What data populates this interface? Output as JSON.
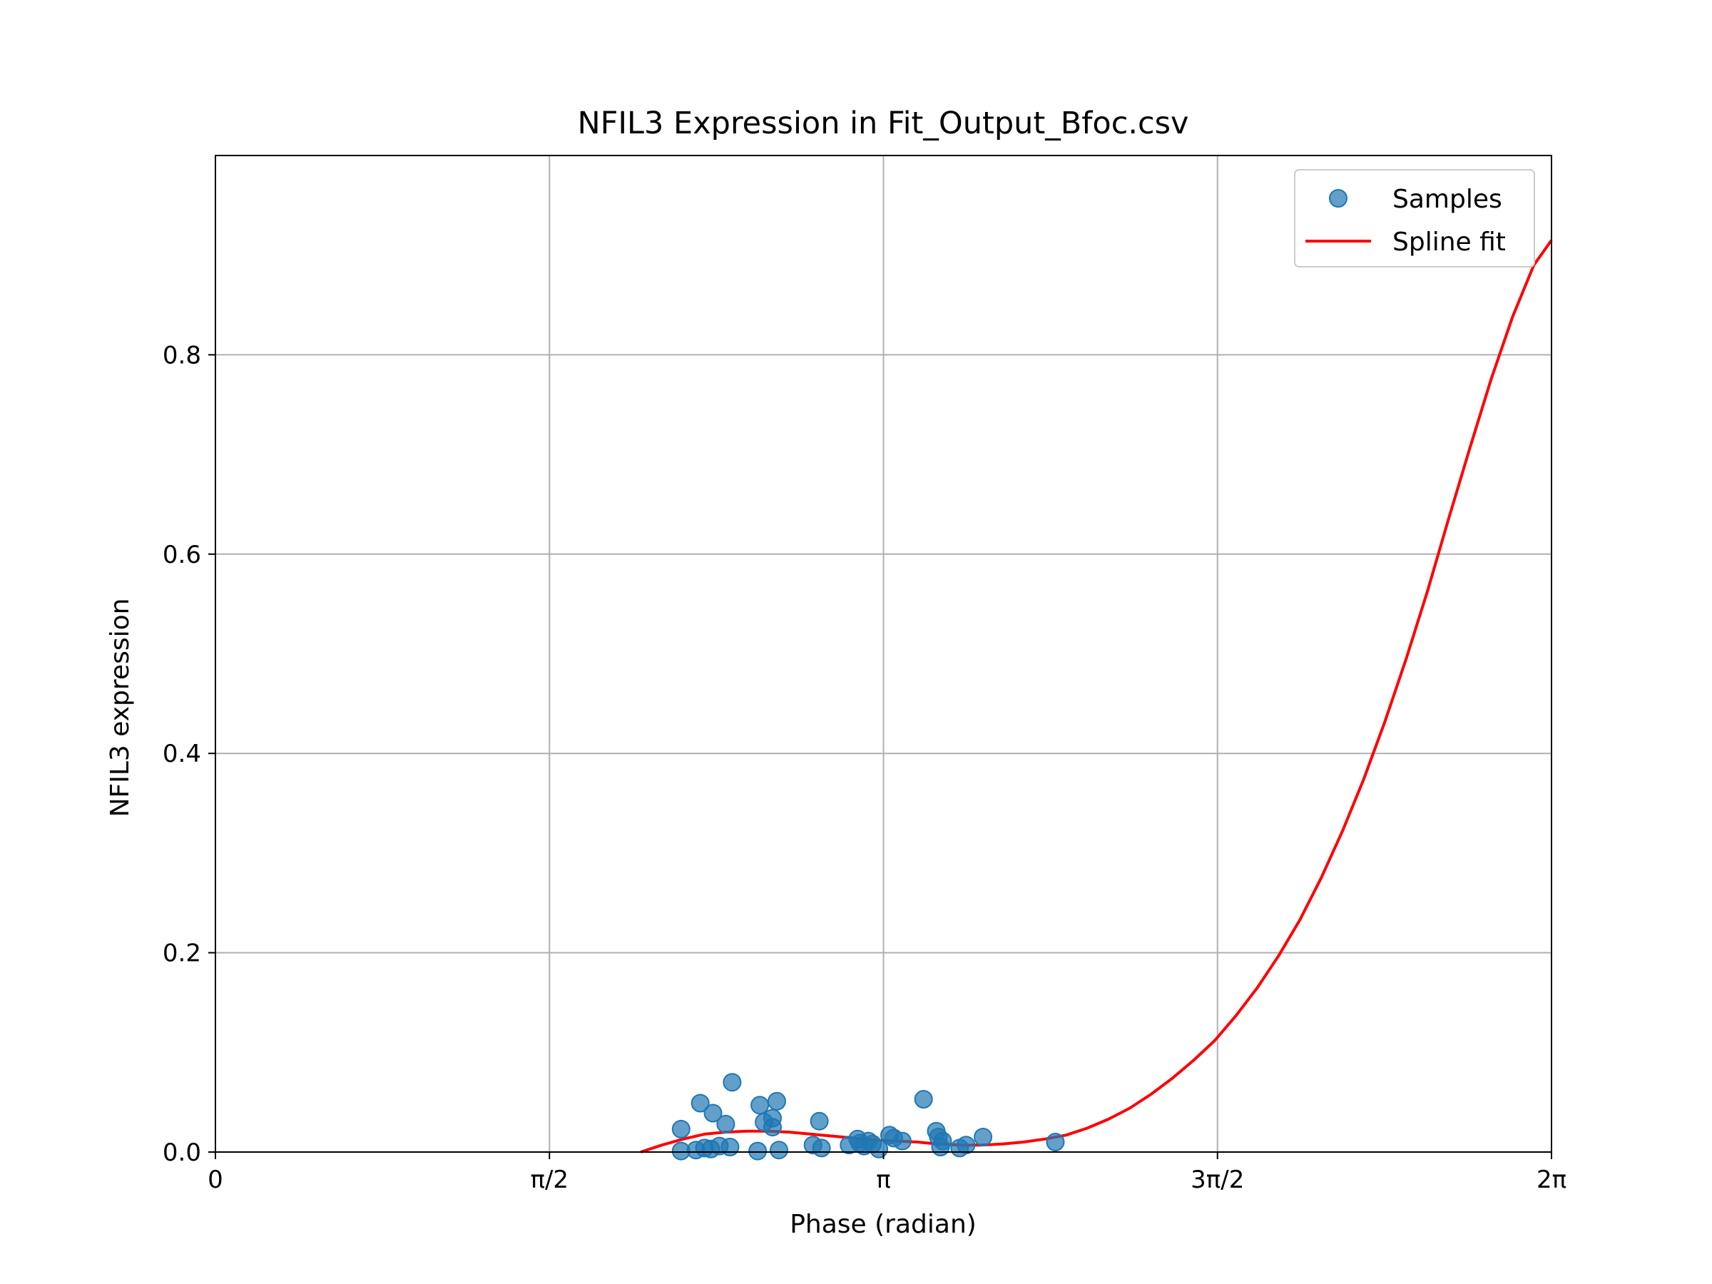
{
  "chart_data": {
    "type": "scatter",
    "title": "NFIL3 Expression in Fit_Output_Bfoc.csv",
    "xlabel": "Phase (radian)",
    "ylabel": "NFIL3 expression",
    "xlim": [
      0,
      6.2832
    ],
    "ylim": [
      0,
      1.0
    ],
    "grid": true,
    "legend_position": "top-right",
    "x_ticks": [
      {
        "value": 0,
        "label": "0"
      },
      {
        "value": 1.5708,
        "label": "π/2"
      },
      {
        "value": 3.1416,
        "label": "π"
      },
      {
        "value": 4.7124,
        "label": "3π/2"
      },
      {
        "value": 6.2832,
        "label": "2π"
      }
    ],
    "y_ticks": [
      {
        "value": 0.0,
        "label": "0.0"
      },
      {
        "value": 0.2,
        "label": "0.2"
      },
      {
        "value": 0.4,
        "label": "0.4"
      },
      {
        "value": 0.6,
        "label": "0.6"
      },
      {
        "value": 0.8,
        "label": "0.8"
      }
    ],
    "series": [
      {
        "name": "Samples",
        "kind": "scatter",
        "color": "#1f77b4",
        "points": [
          [
            2.19,
            0.023
          ],
          [
            2.19,
            0.001
          ],
          [
            2.26,
            0.002
          ],
          [
            2.28,
            0.049
          ],
          [
            2.3,
            0.004
          ],
          [
            2.33,
            0.003
          ],
          [
            2.34,
            0.039
          ],
          [
            2.37,
            0.006
          ],
          [
            2.4,
            0.028
          ],
          [
            2.42,
            0.005
          ],
          [
            2.43,
            0.07
          ],
          [
            2.55,
            0.001
          ],
          [
            2.56,
            0.047
          ],
          [
            2.58,
            0.03
          ],
          [
            2.62,
            0.025
          ],
          [
            2.62,
            0.034
          ],
          [
            2.64,
            0.051
          ],
          [
            2.65,
            0.002
          ],
          [
            2.81,
            0.007
          ],
          [
            2.84,
            0.031
          ],
          [
            2.85,
            0.004
          ],
          [
            2.98,
            0.007
          ],
          [
            3.02,
            0.013
          ],
          [
            3.03,
            0.009
          ],
          [
            3.05,
            0.006
          ],
          [
            3.07,
            0.011
          ],
          [
            3.09,
            0.008
          ],
          [
            3.12,
            0.003
          ],
          [
            3.17,
            0.017
          ],
          [
            3.19,
            0.014
          ],
          [
            3.23,
            0.011
          ],
          [
            3.33,
            0.053
          ],
          [
            3.39,
            0.021
          ],
          [
            3.4,
            0.015
          ],
          [
            3.42,
            0.011
          ],
          [
            3.41,
            0.005
          ],
          [
            3.5,
            0.004
          ],
          [
            3.53,
            0.007
          ],
          [
            3.61,
            0.015
          ],
          [
            3.95,
            0.01
          ]
        ]
      },
      {
        "name": "Spline fit",
        "kind": "line",
        "color": "#ff0000",
        "points": [
          [
            2.0,
            0.0
          ],
          [
            2.1,
            0.007
          ],
          [
            2.2,
            0.013
          ],
          [
            2.3,
            0.018
          ],
          [
            2.4,
            0.02
          ],
          [
            2.5,
            0.021
          ],
          [
            2.6,
            0.021
          ],
          [
            2.7,
            0.02
          ],
          [
            2.8,
            0.018
          ],
          [
            2.9,
            0.016
          ],
          [
            3.0,
            0.014
          ],
          [
            3.1,
            0.012
          ],
          [
            3.2,
            0.011
          ],
          [
            3.3,
            0.01
          ],
          [
            3.4,
            0.008
          ],
          [
            3.5,
            0.007
          ],
          [
            3.6,
            0.007
          ],
          [
            3.7,
            0.008
          ],
          [
            3.8,
            0.01
          ],
          [
            3.9,
            0.013
          ],
          [
            4.0,
            0.017
          ],
          [
            4.1,
            0.024
          ],
          [
            4.2,
            0.033
          ],
          [
            4.3,
            0.044
          ],
          [
            4.4,
            0.058
          ],
          [
            4.5,
            0.074
          ],
          [
            4.6,
            0.092
          ],
          [
            4.7,
            0.112
          ],
          [
            4.8,
            0.137
          ],
          [
            4.9,
            0.165
          ],
          [
            5.0,
            0.197
          ],
          [
            5.1,
            0.233
          ],
          [
            5.2,
            0.275
          ],
          [
            5.3,
            0.322
          ],
          [
            5.4,
            0.374
          ],
          [
            5.5,
            0.432
          ],
          [
            5.6,
            0.495
          ],
          [
            5.7,
            0.563
          ],
          [
            5.8,
            0.636
          ],
          [
            5.9,
            0.707
          ],
          [
            6.0,
            0.776
          ],
          [
            6.1,
            0.838
          ],
          [
            6.2,
            0.89
          ],
          [
            6.2832,
            0.915
          ]
        ]
      }
    ]
  }
}
